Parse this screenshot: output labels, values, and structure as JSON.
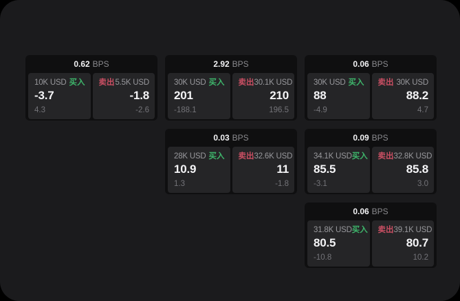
{
  "ui": {
    "bps_label": "BPS",
    "buy_label": "买入",
    "sell_label": "卖出"
  },
  "colors": {
    "screen_bg": "#1b1b1d",
    "card_bg": "#0f0f10",
    "tile_bg": "#252527",
    "buy_green": "#3eb56b",
    "sell_red": "#c94f63",
    "value_white": "#f4f4f6",
    "muted_gray": "#98989c"
  },
  "cards": [
    {
      "bps": "0.62",
      "buy": {
        "notional": "10K USD",
        "value": "-3.7",
        "delta": "4.3"
      },
      "sell": {
        "notional": "5.5K USD",
        "value": "-1.8",
        "delta": "-2.6"
      }
    },
    {
      "bps": "2.92",
      "buy": {
        "notional": "30K USD",
        "value": "201",
        "delta": "-188.1"
      },
      "sell": {
        "notional": "30.1K USD",
        "value": "210",
        "delta": "196.5"
      }
    },
    {
      "bps": "0.06",
      "buy": {
        "notional": "30K USD",
        "value": "88",
        "delta": "-4.9"
      },
      "sell": {
        "notional": "30K USD",
        "value": "88.2",
        "delta": "4.7"
      }
    },
    {
      "bps": "0.03",
      "buy": {
        "notional": "28K USD",
        "value": "10.9",
        "delta": "1.3"
      },
      "sell": {
        "notional": "32.6K USD",
        "value": "11",
        "delta": "-1.8"
      }
    },
    {
      "bps": "0.09",
      "buy": {
        "notional": "34.1K USD",
        "value": "85.5",
        "delta": "-3.1"
      },
      "sell": {
        "notional": "32.8K USD",
        "value": "85.8",
        "delta": "3.0"
      }
    },
    {
      "bps": "0.06",
      "buy": {
        "notional": "31.8K USD",
        "value": "80.5",
        "delta": "-10.8"
      },
      "sell": {
        "notional": "39.1K USD",
        "value": "80.7",
        "delta": "10.2"
      }
    }
  ]
}
